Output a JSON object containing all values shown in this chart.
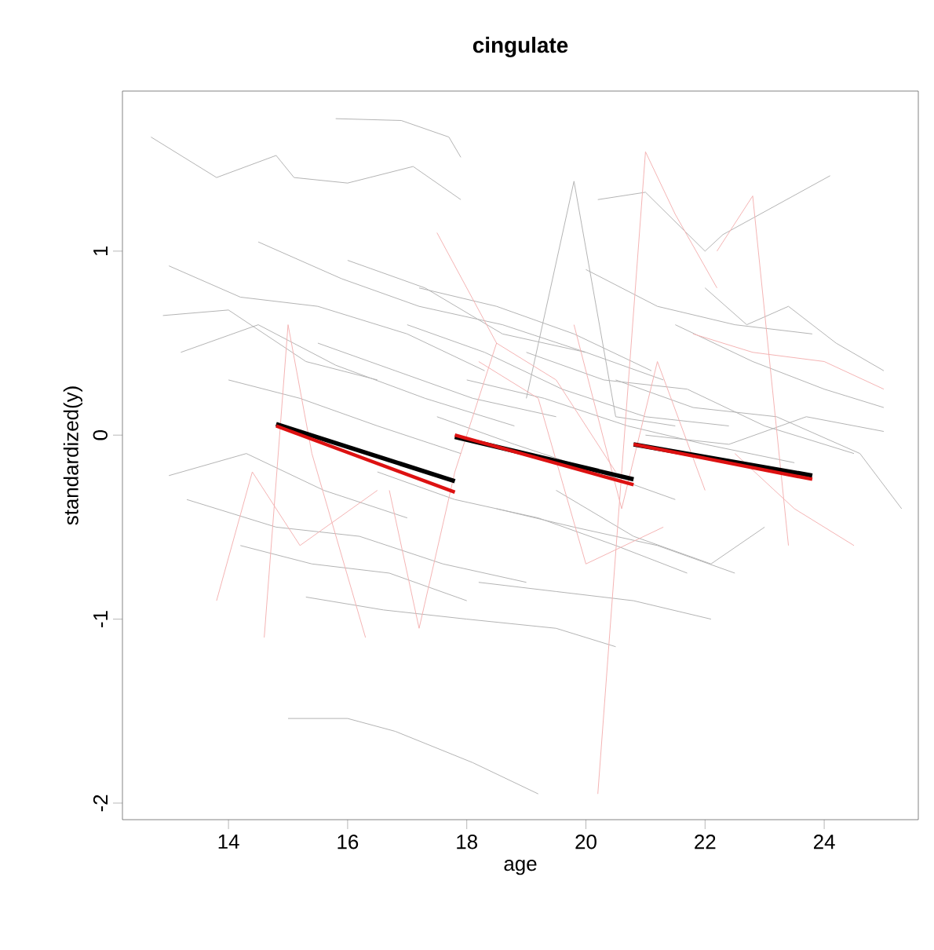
{
  "chart_data": {
    "type": "line",
    "title": "cingulate",
    "xlabel": "age",
    "ylabel": "standardized(y)",
    "xlim": [
      12.22,
      25.58
    ],
    "ylim": [
      -2.09,
      1.87
    ],
    "xticks": [
      14,
      16,
      18,
      20,
      22,
      24
    ],
    "yticks": [
      -2,
      -1,
      0,
      1
    ],
    "series": [
      {
        "color": "#b4b4b4",
        "x": [
          12.7,
          13.8,
          14.8,
          15.1,
          16.0,
          17.1,
          17.9
        ],
        "values": [
          1.62,
          1.4,
          1.52,
          1.4,
          1.37,
          1.46,
          1.28
        ]
      },
      {
        "color": "#b4b4b4",
        "x": [
          15.8,
          16.9,
          17.7,
          17.9
        ],
        "values": [
          1.72,
          1.71,
          1.62,
          1.51
        ]
      },
      {
        "color": "#b4b4b4",
        "x": [
          15.0,
          16.0,
          16.8,
          18.1,
          19.2
        ],
        "values": [
          -1.54,
          -1.54,
          -1.61,
          -1.78,
          -1.95
        ]
      },
      {
        "color": "#b4b4b4",
        "x": [
          20.2,
          21.0,
          22.0,
          22.3,
          24.1
        ],
        "values": [
          1.28,
          1.32,
          1.0,
          1.09,
          1.41
        ]
      },
      {
        "color": "#b4b4b4",
        "x": [
          13.0,
          14.2,
          15.5,
          17.0,
          18.3
        ],
        "values": [
          0.92,
          0.75,
          0.7,
          0.55,
          0.35
        ]
      },
      {
        "color": "#b4b4b4",
        "x": [
          12.9,
          14.0,
          15.3,
          16.5
        ],
        "values": [
          0.65,
          0.68,
          0.4,
          0.3
        ]
      },
      {
        "color": "#b4b4b4",
        "x": [
          13.2,
          14.5,
          15.8,
          17.3,
          18.8
        ],
        "values": [
          0.45,
          0.6,
          0.38,
          0.2,
          0.05
        ]
      },
      {
        "color": "#b4b4b4",
        "x": [
          13.0,
          14.3,
          15.6,
          17.0
        ],
        "values": [
          -0.22,
          -0.1,
          -0.3,
          -0.45
        ]
      },
      {
        "color": "#b4b4b4",
        "x": [
          13.3,
          14.8,
          16.2,
          17.6,
          19.0
        ],
        "values": [
          -0.35,
          -0.5,
          -0.55,
          -0.7,
          -0.8
        ]
      },
      {
        "color": "#b4b4b4",
        "x": [
          15.3,
          16.6,
          18.0,
          19.5,
          20.5
        ],
        "values": [
          -0.88,
          -0.95,
          -1.0,
          -1.05,
          -1.15
        ]
      },
      {
        "color": "#b4b4b4",
        "x": [
          14.0,
          15.2,
          16.5,
          17.9
        ],
        "values": [
          0.3,
          0.2,
          0.05,
          -0.1
        ]
      },
      {
        "color": "#b4b4b4",
        "x": [
          14.5,
          15.9,
          17.2,
          18.6,
          20.0
        ],
        "values": [
          1.05,
          0.85,
          0.7,
          0.6,
          0.45
        ]
      },
      {
        "color": "#b4b4b4",
        "x": [
          16.0,
          17.3,
          18.6,
          20.0,
          21.3
        ],
        "values": [
          0.95,
          0.8,
          0.55,
          0.45,
          0.3
        ]
      },
      {
        "color": "#b4b4b4",
        "x": [
          17.0,
          18.3,
          19.6,
          21.0,
          22.4
        ],
        "values": [
          0.6,
          0.45,
          0.25,
          0.1,
          0.05
        ]
      },
      {
        "color": "#b4b4b4",
        "x": [
          18.0,
          19.3,
          20.7,
          22.0,
          23.5
        ],
        "values": [
          0.3,
          0.2,
          0.05,
          -0.05,
          -0.15
        ]
      },
      {
        "color": "#b4b4b4",
        "x": [
          19.0,
          20.3,
          21.7,
          23.0,
          24.5
        ],
        "values": [
          0.45,
          0.3,
          0.25,
          0.05,
          -0.1
        ]
      },
      {
        "color": "#b4b4b4",
        "x": [
          20.5,
          21.8,
          23.2,
          24.6,
          25.3
        ],
        "values": [
          0.3,
          0.15,
          0.1,
          -0.1,
          -0.4
        ]
      },
      {
        "color": "#b4b4b4",
        "x": [
          21.0,
          22.4,
          23.7,
          25.0
        ],
        "values": [
          0.0,
          -0.05,
          0.1,
          0.02
        ]
      },
      {
        "color": "#b4b4b4",
        "x": [
          18.5,
          19.8,
          21.2,
          22.5
        ],
        "values": [
          -0.4,
          -0.5,
          -0.6,
          -0.75
        ]
      },
      {
        "color": "#b4b4b4",
        "x": [
          19.5,
          20.8,
          22.1,
          23.0
        ],
        "values": [
          -0.3,
          -0.55,
          -0.7,
          -0.5
        ]
      },
      {
        "color": "#b4b4b4",
        "x": [
          16.5,
          17.8,
          19.2,
          20.5,
          21.7
        ],
        "values": [
          -0.2,
          -0.35,
          -0.45,
          -0.6,
          -0.75
        ]
      },
      {
        "color": "#b4b4b4",
        "x": [
          17.5,
          18.8,
          20.2,
          21.5
        ],
        "values": [
          0.1,
          -0.05,
          -0.2,
          -0.35
        ]
      },
      {
        "color": "#b4b4b4",
        "x": [
          15.5,
          16.8,
          18.1,
          19.5
        ],
        "values": [
          0.5,
          0.35,
          0.2,
          0.1
        ]
      },
      {
        "color": "#b4b4b4",
        "x": [
          19.0,
          19.8,
          20.5,
          21.5
        ],
        "values": [
          0.2,
          1.38,
          0.1,
          0.05
        ]
      },
      {
        "color": "#b4b4b4",
        "x": [
          21.5,
          22.8,
          24.0,
          25.0
        ],
        "values": [
          0.6,
          0.4,
          0.25,
          0.15
        ]
      },
      {
        "color": "#b4b4b4",
        "x": [
          22.0,
          22.7,
          23.4,
          24.2,
          25.0
        ],
        "values": [
          0.8,
          0.6,
          0.7,
          0.5,
          0.35
        ]
      },
      {
        "color": "#b4b4b4",
        "x": [
          14.2,
          15.4,
          16.7,
          18.0
        ],
        "values": [
          -0.6,
          -0.7,
          -0.75,
          -0.9
        ]
      },
      {
        "color": "#b4b4b4",
        "x": [
          17.2,
          18.5,
          19.8,
          21.1
        ],
        "values": [
          0.8,
          0.7,
          0.55,
          0.35
        ]
      },
      {
        "color": "#b4b4b4",
        "x": [
          20.0,
          21.2,
          22.5,
          23.8
        ],
        "values": [
          0.9,
          0.7,
          0.6,
          0.55
        ]
      },
      {
        "color": "#b4b4b4",
        "x": [
          18.2,
          19.5,
          20.8,
          22.1
        ],
        "values": [
          -0.8,
          -0.85,
          -0.9,
          -1.0
        ]
      },
      {
        "color": "#f4b4b4",
        "x": [
          14.6,
          15.0,
          15.4,
          16.3
        ],
        "values": [
          -1.1,
          0.6,
          -0.1,
          -1.1
        ]
      },
      {
        "color": "#f4b4b4",
        "x": [
          16.7,
          17.2,
          17.8,
          18.5
        ],
        "values": [
          -0.3,
          -1.05,
          -0.2,
          0.5
        ]
      },
      {
        "color": "#f4b4b4",
        "x": [
          20.2,
          21.0,
          21.5,
          22.2
        ],
        "values": [
          -1.95,
          1.54,
          1.2,
          0.8
        ]
      },
      {
        "color": "#f4b4b4",
        "x": [
          22.2,
          22.8,
          23.4
        ],
        "values": [
          1.0,
          1.3,
          -0.6
        ]
      },
      {
        "color": "#f4b4b4",
        "x": [
          18.2,
          19.2,
          20.0,
          21.3
        ],
        "values": [
          0.4,
          0.2,
          -0.7,
          -0.5
        ]
      },
      {
        "color": "#f4b4b4",
        "x": [
          21.8,
          22.8,
          24.0,
          25.0
        ],
        "values": [
          0.55,
          0.45,
          0.4,
          0.25
        ]
      },
      {
        "color": "#f4b4b4",
        "x": [
          13.8,
          14.4,
          15.2,
          16.5
        ],
        "values": [
          -0.9,
          -0.2,
          -0.6,
          -0.3
        ]
      },
      {
        "color": "#f4b4b4",
        "x": [
          17.5,
          18.5,
          19.5,
          20.5
        ],
        "values": [
          1.1,
          0.5,
          0.3,
          -0.2
        ]
      },
      {
        "color": "#f4b4b4",
        "x": [
          19.8,
          20.6,
          21.2,
          22.0
        ],
        "values": [
          0.6,
          -0.4,
          0.4,
          -0.3
        ]
      },
      {
        "color": "#f4b4b4",
        "x": [
          22.5,
          23.5,
          24.5
        ],
        "values": [
          -0.1,
          -0.4,
          -0.6
        ]
      },
      {
        "color": "#000000",
        "x": [
          14.8,
          17.8
        ],
        "values": [
          0.06,
          -0.25
        ]
      },
      {
        "color": "#dd1111",
        "x": [
          14.8,
          17.8
        ],
        "values": [
          0.05,
          -0.31
        ]
      },
      {
        "color": "#000000",
        "x": [
          17.8,
          20.8
        ],
        "values": [
          -0.01,
          -0.24
        ]
      },
      {
        "color": "#dd1111",
        "x": [
          17.8,
          20.8
        ],
        "values": [
          0.0,
          -0.27
        ]
      },
      {
        "color": "#000000",
        "x": [
          20.8,
          23.8
        ],
        "values": [
          -0.05,
          -0.22
        ]
      },
      {
        "color": "#dd1111",
        "x": [
          20.8,
          23.8
        ],
        "values": [
          -0.05,
          -0.24
        ]
      }
    ]
  }
}
